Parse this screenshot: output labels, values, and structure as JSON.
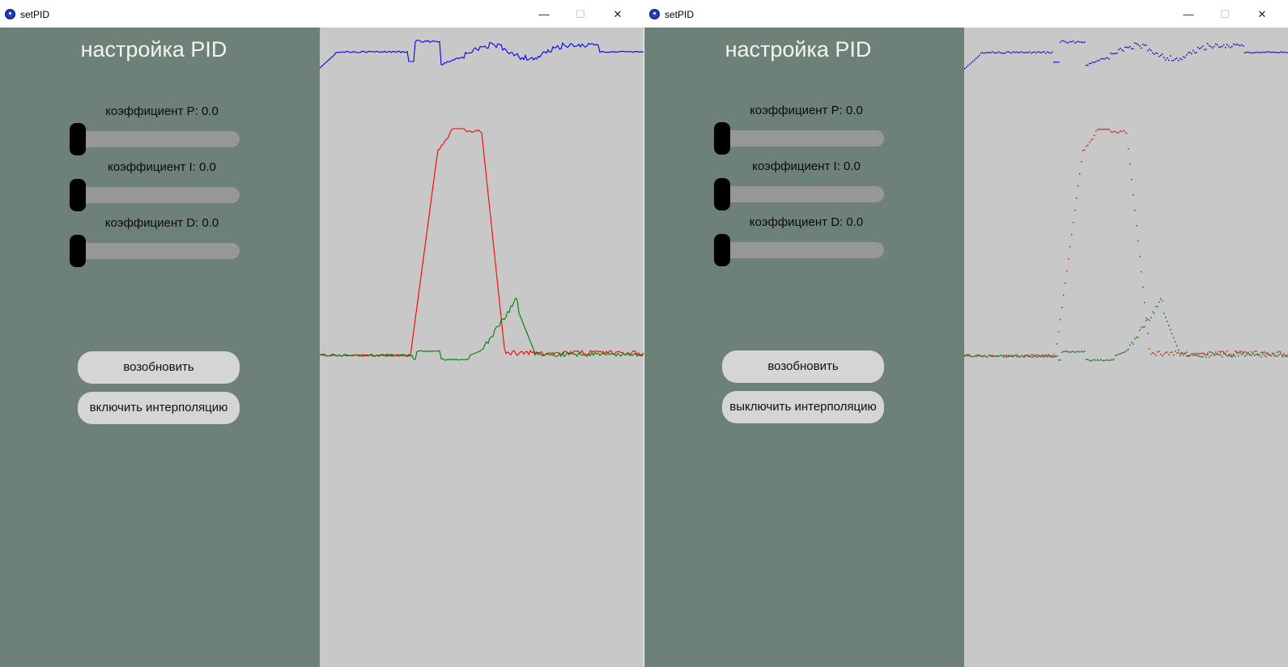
{
  "windows": [
    {
      "title": "setPID",
      "heading": "настройка PID",
      "coef_p": "коэффициент P: 0.0",
      "coef_i": "коэффициент I: 0.0",
      "coef_d": "коэффициент D: 0.0",
      "slider_p": 0.0,
      "slider_i": 0.0,
      "slider_d": 0.0,
      "resume_label": "возобновить",
      "interp_label": "включить интерполяцию",
      "plot_style": "line"
    },
    {
      "title": "setPID",
      "heading": "настройка PID",
      "coef_p": "коэффициент P: 0.0",
      "coef_i": "коэффициент I: 0.0",
      "coef_d": "коэффициент D: 0.0",
      "slider_p": 0.0,
      "slider_i": 0.0,
      "slider_d": 0.0,
      "resume_label": "возобновить",
      "interp_label": "выключить интерполяцию",
      "plot_style": "points"
    }
  ],
  "window_controls": {
    "minimize": "—",
    "maximize": "☐",
    "close": "✕"
  },
  "icons": [
    "app-icon",
    "minimize-icon",
    "maximize-icon",
    "close-icon"
  ],
  "colors": {
    "panel_bg": "#6d8179",
    "plot_bg": "#c8c8c8",
    "series_blue": "#0000ff",
    "series_red": "#ff0000",
    "series_green": "#008000",
    "slider_track": "#979797",
    "slider_knob": "#000000",
    "button_bg": "#d5d5d5",
    "heading_color": "#f2f4ee"
  }
}
